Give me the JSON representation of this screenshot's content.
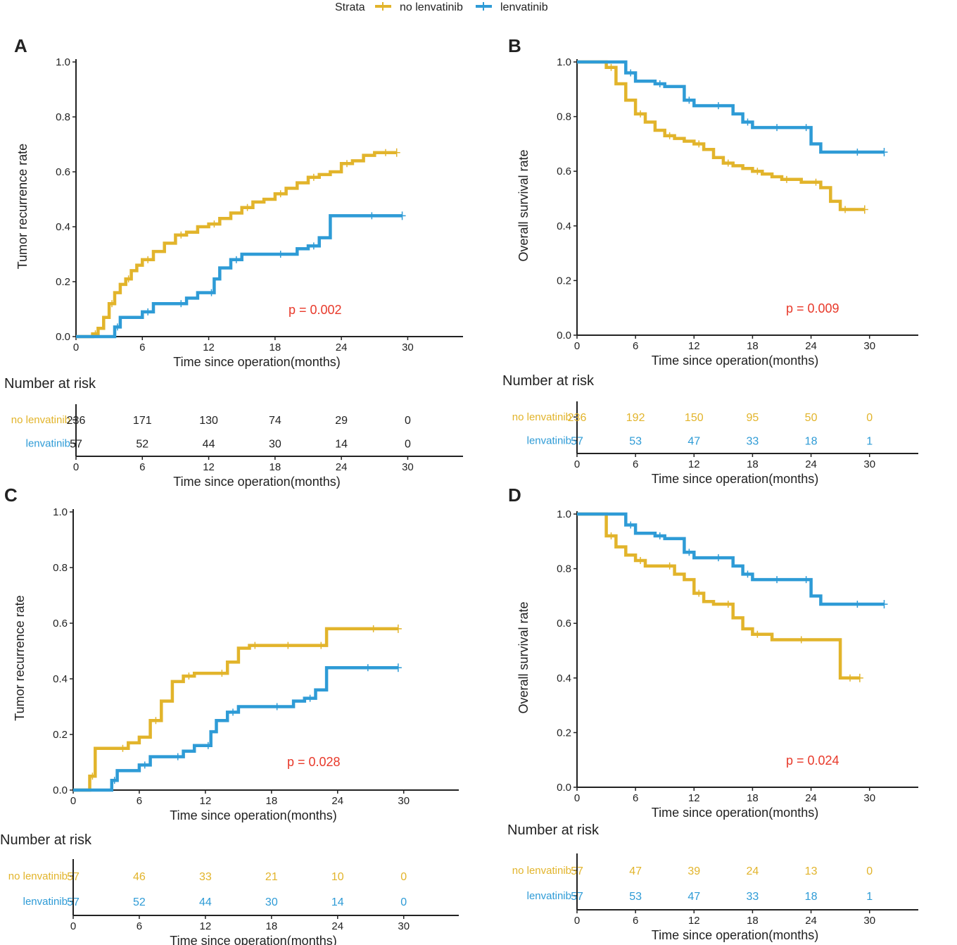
{
  "legend": {
    "title": "Strata",
    "entries": [
      {
        "label": "no lenvatinib",
        "color": "#E2B42B"
      },
      {
        "label": "lenvatinib",
        "color": "#2E9BD6"
      }
    ]
  },
  "colors": {
    "no_lenvatinib": "#E2B42B",
    "lenvatinib": "#2E9BD6",
    "pvalue": "#E8392A",
    "axis": "#222222"
  },
  "chart_data": [
    {
      "panel": "A",
      "type": "line",
      "subtype": "kaplan-meier-step",
      "ylabel": "Tumor recurrence rate",
      "xlabel": "Time since operation(months)",
      "xlim": [
        0,
        35
      ],
      "ylim": [
        0,
        1
      ],
      "xticks": [
        "0",
        "6",
        "12",
        "18",
        "24",
        "30"
      ],
      "yticks": [
        "0.0",
        "0.2",
        "0.4",
        "0.6",
        "0.8",
        "1.0"
      ],
      "pvalue": "p = 0.002",
      "series": [
        {
          "name": "no lenvatinib",
          "x": [
            0,
            1,
            1.5,
            2,
            2.5,
            3,
            3.5,
            4,
            4.5,
            5,
            5.5,
            6,
            7,
            8,
            9,
            10,
            11,
            12,
            13,
            14,
            15,
            16,
            17,
            18,
            19,
            20,
            21,
            22,
            23,
            24,
            25,
            26,
            27,
            29
          ],
          "y": [
            0,
            0,
            0.01,
            0.03,
            0.07,
            0.12,
            0.16,
            0.19,
            0.21,
            0.24,
            0.26,
            0.28,
            0.31,
            0.34,
            0.37,
            0.38,
            0.4,
            0.41,
            0.43,
            0.45,
            0.47,
            0.49,
            0.5,
            0.52,
            0.54,
            0.56,
            0.58,
            0.59,
            0.6,
            0.63,
            0.64,
            0.66,
            0.67,
            0.67
          ]
        },
        {
          "name": "lenvatinib",
          "x": [
            0,
            3,
            3.5,
            4,
            5,
            6,
            7,
            8,
            9,
            10,
            11,
            12,
            12.5,
            13,
            14,
            15,
            17,
            18,
            19,
            20,
            21,
            22,
            23,
            24,
            29.5
          ],
          "y": [
            0,
            0,
            0.035,
            0.07,
            0.07,
            0.09,
            0.12,
            0.12,
            0.12,
            0.14,
            0.16,
            0.16,
            0.21,
            0.25,
            0.28,
            0.3,
            0.3,
            0.3,
            0.3,
            0.32,
            0.33,
            0.36,
            0.44,
            0.44,
            0.44
          ]
        }
      ],
      "risk": {
        "title": "Number at risk",
        "rows": [
          {
            "label": "no lenvatinib",
            "values": [
              "236",
              "171",
              "130",
              "74",
              "29",
              "0"
            ]
          },
          {
            "label": "lenvatinib",
            "values": [
              "57",
              "52",
              "44",
              "30",
              "14",
              "0"
            ]
          }
        ]
      }
    },
    {
      "panel": "B",
      "type": "line",
      "subtype": "kaplan-meier-step",
      "ylabel": "Overall survival rate",
      "xlabel": "Time since operation(months)",
      "xlim": [
        0,
        35
      ],
      "ylim": [
        0,
        1
      ],
      "xticks": [
        "0",
        "6",
        "12",
        "18",
        "24",
        "30"
      ],
      "yticks": [
        "0.0",
        "0.2",
        "0.4",
        "0.6",
        "0.8",
        "1.0"
      ],
      "pvalue": "p = 0.009",
      "series": [
        {
          "name": "no lenvatinib",
          "x": [
            0,
            2,
            3,
            4,
            5,
            6,
            7,
            8,
            9,
            10,
            11,
            12,
            13,
            14,
            15,
            16,
            17,
            18,
            19,
            20,
            21,
            22,
            23,
            24,
            25,
            26,
            27,
            28,
            29.5
          ],
          "y": [
            1,
            1,
            0.98,
            0.92,
            0.86,
            0.81,
            0.78,
            0.75,
            0.73,
            0.72,
            0.71,
            0.7,
            0.68,
            0.65,
            0.63,
            0.62,
            0.61,
            0.6,
            0.59,
            0.58,
            0.57,
            0.57,
            0.56,
            0.56,
            0.54,
            0.49,
            0.46,
            0.46,
            0.46
          ]
        },
        {
          "name": "lenvatinib",
          "x": [
            0,
            4,
            5,
            6,
            7,
            8,
            9,
            10,
            11,
            12,
            13,
            14,
            15,
            16,
            17,
            18,
            19,
            20,
            21,
            22,
            23,
            24,
            25,
            26,
            31.5
          ],
          "y": [
            1,
            1,
            0.96,
            0.93,
            0.93,
            0.92,
            0.91,
            0.91,
            0.86,
            0.84,
            0.84,
            0.84,
            0.84,
            0.81,
            0.78,
            0.76,
            0.76,
            0.76,
            0.76,
            0.76,
            0.76,
            0.7,
            0.67,
            0.67,
            0.67
          ]
        }
      ],
      "risk": {
        "title": "Number at risk",
        "rows": [
          {
            "label": "no lenvatinib",
            "values": [
              "236",
              "192",
              "150",
              "95",
              "50",
              "0"
            ]
          },
          {
            "label": "lenvatinib",
            "values": [
              "57",
              "53",
              "47",
              "33",
              "18",
              "1"
            ]
          }
        ]
      }
    },
    {
      "panel": "C",
      "type": "line",
      "subtype": "kaplan-meier-step",
      "ylabel": "Tumor recurrence rate",
      "xlabel": "Time since operation(months)",
      "xlim": [
        0,
        35
      ],
      "ylim": [
        0,
        1
      ],
      "xticks": [
        "0",
        "6",
        "12",
        "18",
        "24",
        "30"
      ],
      "yticks": [
        "0.0",
        "0.2",
        "0.4",
        "0.6",
        "0.8",
        "1.0"
      ],
      "pvalue": "p = 0.028",
      "series": [
        {
          "name": "no lenvatinib",
          "x": [
            0,
            1,
            1.5,
            2,
            3,
            4,
            5,
            6,
            7,
            8,
            9,
            10,
            11,
            12,
            13,
            14,
            15,
            16,
            17,
            18,
            19,
            20,
            21,
            22,
            23,
            24,
            25,
            29.5
          ],
          "y": [
            0,
            0,
            0.05,
            0.15,
            0.15,
            0.15,
            0.17,
            0.19,
            0.25,
            0.32,
            0.39,
            0.41,
            0.42,
            0.42,
            0.42,
            0.46,
            0.51,
            0.52,
            0.52,
            0.52,
            0.52,
            0.52,
            0.52,
            0.52,
            0.58,
            0.58,
            0.58,
            0.58
          ]
        },
        {
          "name": "lenvatinib",
          "x": [
            0,
            3,
            3.5,
            4,
            5,
            6,
            7,
            8,
            9,
            10,
            11,
            12,
            12.5,
            13,
            14,
            15,
            17,
            18,
            19,
            20,
            21,
            22,
            23,
            24,
            29.5
          ],
          "y": [
            0,
            0,
            0.035,
            0.07,
            0.07,
            0.09,
            0.12,
            0.12,
            0.12,
            0.14,
            0.16,
            0.16,
            0.21,
            0.25,
            0.28,
            0.3,
            0.3,
            0.3,
            0.3,
            0.32,
            0.33,
            0.36,
            0.44,
            0.44,
            0.44
          ]
        }
      ],
      "risk": {
        "title": "Number at risk",
        "rows": [
          {
            "label": "no lenvatinib",
            "values": [
              "57",
              "46",
              "33",
              "21",
              "10",
              "0"
            ]
          },
          {
            "label": "lenvatinib",
            "values": [
              "57",
              "52",
              "44",
              "30",
              "14",
              "0"
            ]
          }
        ]
      }
    },
    {
      "panel": "D",
      "type": "line",
      "subtype": "kaplan-meier-step",
      "ylabel": "Overall survival rate",
      "xlabel": "Time since operation(months)",
      "xlim": [
        0,
        35
      ],
      "ylim": [
        0,
        1
      ],
      "xticks": [
        "0",
        "6",
        "12",
        "18",
        "24",
        "30"
      ],
      "yticks": [
        "0.0",
        "0.2",
        "0.4",
        "0.6",
        "0.8",
        "1.0"
      ],
      "pvalue": "p = 0.024",
      "series": [
        {
          "name": "no lenvatinib",
          "x": [
            0,
            2.5,
            3,
            4,
            5,
            6,
            7,
            8,
            9,
            10,
            11,
            12,
            13,
            14,
            15,
            16,
            17,
            18,
            19,
            20,
            22,
            24,
            26,
            27,
            29
          ],
          "y": [
            1,
            1,
            0.92,
            0.88,
            0.85,
            0.83,
            0.81,
            0.81,
            0.81,
            0.78,
            0.76,
            0.71,
            0.68,
            0.67,
            0.67,
            0.62,
            0.58,
            0.56,
            0.56,
            0.54,
            0.54,
            0.54,
            0.54,
            0.4,
            0.4
          ]
        },
        {
          "name": "lenvatinib",
          "x": [
            0,
            4,
            5,
            6,
            7,
            8,
            9,
            10,
            11,
            12,
            13,
            14,
            15,
            16,
            17,
            18,
            19,
            20,
            21,
            22,
            23,
            24,
            25,
            26,
            31.5
          ],
          "y": [
            1,
            1,
            0.96,
            0.93,
            0.93,
            0.92,
            0.91,
            0.91,
            0.86,
            0.84,
            0.84,
            0.84,
            0.84,
            0.81,
            0.78,
            0.76,
            0.76,
            0.76,
            0.76,
            0.76,
            0.76,
            0.7,
            0.67,
            0.67,
            0.67
          ]
        }
      ],
      "risk": {
        "title": "Number at risk",
        "rows": [
          {
            "label": "no lenvatinib",
            "values": [
              "57",
              "47",
              "39",
              "24",
              "13",
              "0"
            ]
          },
          {
            "label": "lenvatinib",
            "values": [
              "57",
              "53",
              "47",
              "33",
              "18",
              "1"
            ]
          }
        ]
      }
    }
  ]
}
